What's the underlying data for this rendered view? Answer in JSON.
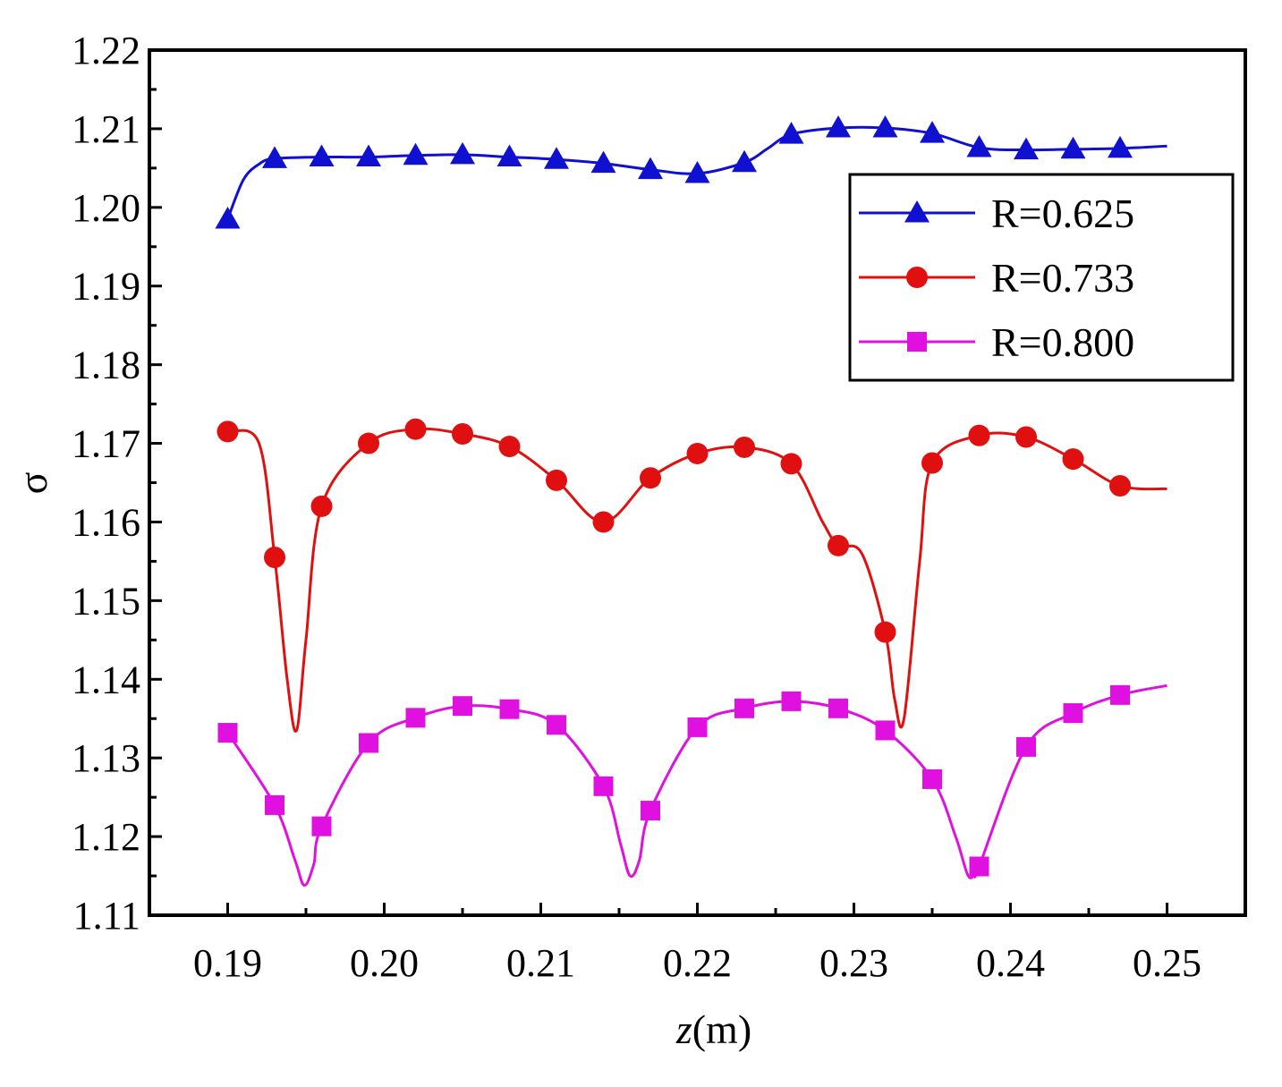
{
  "chart_data": {
    "type": "line",
    "title": "",
    "xlabel_italic": "z",
    "xlabel_unit": "(m)",
    "ylabel": "σ",
    "xlim": [
      0.185,
      0.255
    ],
    "ylim": [
      1.11,
      1.22
    ],
    "xticks": [
      "0.19",
      "0.20",
      "0.21",
      "0.22",
      "0.23",
      "0.24",
      "0.25"
    ],
    "yticks": [
      "1.11",
      "1.12",
      "1.13",
      "1.14",
      "1.15",
      "1.16",
      "1.17",
      "1.18",
      "1.19",
      "1.20",
      "1.21",
      "1.22"
    ],
    "legend_position": "top-right",
    "series": [
      {
        "name": "R=0.625",
        "color": "#1010d0",
        "marker": "triangle",
        "curve": [
          [
            0.19,
            1.1985
          ],
          [
            0.191,
            1.2035
          ],
          [
            0.192,
            1.2055
          ],
          [
            0.193,
            1.2062
          ],
          [
            0.196,
            1.2064
          ],
          [
            0.199,
            1.2064
          ],
          [
            0.202,
            1.2066
          ],
          [
            0.205,
            1.2067
          ],
          [
            0.208,
            1.2064
          ],
          [
            0.211,
            1.2061
          ],
          [
            0.214,
            1.2056
          ],
          [
            0.217,
            1.2048
          ],
          [
            0.22,
            1.2043
          ],
          [
            0.223,
            1.2057
          ],
          [
            0.2245,
            1.2075
          ],
          [
            0.226,
            1.2093
          ],
          [
            0.229,
            1.2101
          ],
          [
            0.232,
            1.2101
          ],
          [
            0.235,
            1.2094
          ],
          [
            0.238,
            1.2076
          ],
          [
            0.241,
            1.2073
          ],
          [
            0.244,
            1.2074
          ],
          [
            0.247,
            1.2075
          ],
          [
            0.25,
            1.2078
          ]
        ],
        "markers": [
          [
            0.19,
            1.1985
          ],
          [
            0.193,
            1.2062
          ],
          [
            0.196,
            1.2064
          ],
          [
            0.199,
            1.2064
          ],
          [
            0.202,
            1.2066
          ],
          [
            0.205,
            1.2067
          ],
          [
            0.208,
            1.2064
          ],
          [
            0.211,
            1.2061
          ],
          [
            0.214,
            1.2056
          ],
          [
            0.217,
            1.2048
          ],
          [
            0.22,
            1.2043
          ],
          [
            0.223,
            1.2057
          ],
          [
            0.226,
            1.2093
          ],
          [
            0.229,
            1.2101
          ],
          [
            0.232,
            1.2101
          ],
          [
            0.235,
            1.2094
          ],
          [
            0.238,
            1.2076
          ],
          [
            0.241,
            1.2073
          ],
          [
            0.244,
            1.2074
          ],
          [
            0.247,
            1.2075
          ]
        ]
      },
      {
        "name": "R=0.733",
        "color": "#e01010",
        "marker": "circle",
        "curve": [
          [
            0.19,
            1.1715
          ],
          [
            0.192,
            1.17
          ],
          [
            0.193,
            1.1555
          ],
          [
            0.1938,
            1.14
          ],
          [
            0.1944,
            1.1335
          ],
          [
            0.195,
            1.145
          ],
          [
            0.196,
            1.162
          ],
          [
            0.199,
            1.17
          ],
          [
            0.202,
            1.1718
          ],
          [
            0.205,
            1.1712
          ],
          [
            0.208,
            1.1696
          ],
          [
            0.211,
            1.1653
          ],
          [
            0.214,
            1.16
          ],
          [
            0.217,
            1.1656
          ],
          [
            0.22,
            1.1687
          ],
          [
            0.223,
            1.1695
          ],
          [
            0.226,
            1.1674
          ],
          [
            0.228,
            1.16
          ],
          [
            0.229,
            1.157
          ],
          [
            0.2305,
            1.156
          ],
          [
            0.232,
            1.146
          ],
          [
            0.2326,
            1.1375
          ],
          [
            0.2332,
            1.135
          ],
          [
            0.2342,
            1.155
          ],
          [
            0.235,
            1.1675
          ],
          [
            0.238,
            1.171
          ],
          [
            0.241,
            1.1708
          ],
          [
            0.244,
            1.168
          ],
          [
            0.247,
            1.1646
          ],
          [
            0.25,
            1.1642
          ]
        ],
        "markers": [
          [
            0.19,
            1.1715
          ],
          [
            0.193,
            1.1555
          ],
          [
            0.196,
            1.162
          ],
          [
            0.199,
            1.17
          ],
          [
            0.202,
            1.1718
          ],
          [
            0.205,
            1.1712
          ],
          [
            0.208,
            1.1696
          ],
          [
            0.211,
            1.1653
          ],
          [
            0.214,
            1.16
          ],
          [
            0.217,
            1.1656
          ],
          [
            0.22,
            1.1687
          ],
          [
            0.223,
            1.1695
          ],
          [
            0.226,
            1.1674
          ],
          [
            0.229,
            1.157
          ],
          [
            0.232,
            1.146
          ],
          [
            0.235,
            1.1675
          ],
          [
            0.238,
            1.171
          ],
          [
            0.241,
            1.1708
          ],
          [
            0.244,
            1.168
          ],
          [
            0.247,
            1.1646
          ]
        ]
      },
      {
        "name": "R=0.800",
        "color": "#e010e0",
        "marker": "square",
        "curve": [
          [
            0.19,
            1.1332
          ],
          [
            0.193,
            1.124
          ],
          [
            0.1943,
            1.117
          ],
          [
            0.1949,
            1.1138
          ],
          [
            0.1955,
            1.1165
          ],
          [
            0.196,
            1.1213
          ],
          [
            0.199,
            1.1319
          ],
          [
            0.202,
            1.1351
          ],
          [
            0.205,
            1.1366
          ],
          [
            0.208,
            1.1362
          ],
          [
            0.211,
            1.1342
          ],
          [
            0.214,
            1.1264
          ],
          [
            0.2151,
            1.119
          ],
          [
            0.2157,
            1.115
          ],
          [
            0.2163,
            1.117
          ],
          [
            0.217,
            1.1233
          ],
          [
            0.22,
            1.1339
          ],
          [
            0.223,
            1.1363
          ],
          [
            0.226,
            1.1372
          ],
          [
            0.229,
            1.1363
          ],
          [
            0.232,
            1.1335
          ],
          [
            0.235,
            1.1273
          ],
          [
            0.2365,
            1.12
          ],
          [
            0.2373,
            1.115
          ],
          [
            0.2378,
            1.1155
          ],
          [
            0.238,
            1.1162
          ],
          [
            0.241,
            1.1314
          ],
          [
            0.244,
            1.1357
          ],
          [
            0.247,
            1.138
          ],
          [
            0.25,
            1.1392
          ]
        ],
        "markers": [
          [
            0.19,
            1.1332
          ],
          [
            0.193,
            1.124
          ],
          [
            0.196,
            1.1213
          ],
          [
            0.199,
            1.1319
          ],
          [
            0.202,
            1.1351
          ],
          [
            0.205,
            1.1366
          ],
          [
            0.208,
            1.1362
          ],
          [
            0.211,
            1.1342
          ],
          [
            0.214,
            1.1264
          ],
          [
            0.217,
            1.1233
          ],
          [
            0.22,
            1.1339
          ],
          [
            0.223,
            1.1363
          ],
          [
            0.226,
            1.1372
          ],
          [
            0.229,
            1.1363
          ],
          [
            0.232,
            1.1335
          ],
          [
            0.235,
            1.1273
          ],
          [
            0.238,
            1.1162
          ],
          [
            0.241,
            1.1314
          ],
          [
            0.244,
            1.1357
          ],
          [
            0.247,
            1.138
          ]
        ]
      }
    ]
  }
}
